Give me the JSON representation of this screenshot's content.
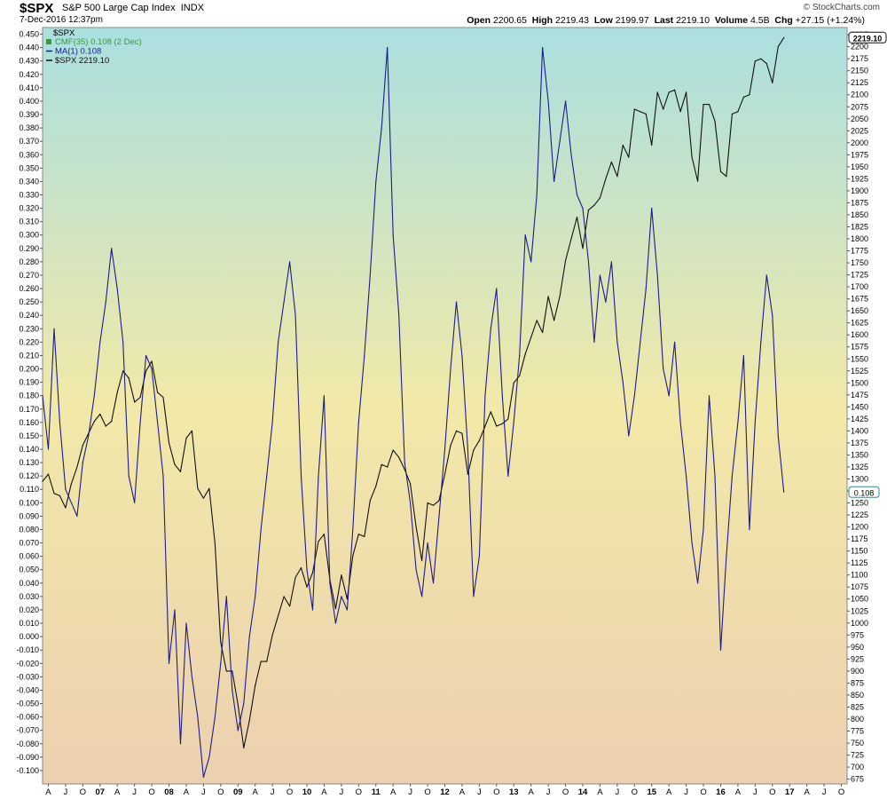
{
  "header": {
    "symbol": "$SPX",
    "name": "S&P 500 Large Cap Index",
    "exchange": "INDX",
    "datetime": "7-Dec-2016 12:37pm",
    "brand": "© StockCharts.com",
    "quote": {
      "open_label": "Open",
      "open": "2200.65",
      "high_label": "High",
      "high": "2219.43",
      "low_label": "Low",
      "low": "2199.97",
      "last_label": "Last",
      "last": "2219.10",
      "volume_label": "Volume",
      "volume": "4.5B",
      "chg_label": "Chg",
      "chg": "+27.15 (+1.24%)"
    }
  },
  "colors": {
    "cmf_line": "#1c1c8a",
    "price_line": "#111111",
    "bg_top": "#aadfe0",
    "bg_mid": "#f2e9a8",
    "bg_bottom": "#ecd0b0",
    "legend_cmf": "#3a9a3a"
  },
  "legend": {
    "ticker": "$SPX",
    "items": [
      {
        "label": "CMF(35) 0.108 (2 Dec)",
        "color": "#3a9a3a",
        "icon": "histogram-icon"
      },
      {
        "label": "MA(1) 0.108",
        "color": "#1c1c8a",
        "icon": "line-icon"
      },
      {
        "label": "$SPX 2219.10",
        "color": "#111111",
        "icon": "line-icon"
      }
    ]
  },
  "chart_data": {
    "type": "line",
    "x_start": "2006-03",
    "x_end": "2017-11",
    "left_axis": {
      "min": -0.11,
      "max": 0.455,
      "ticks": [
        "-0.100",
        "-0.090",
        "-0.080",
        "-0.070",
        "-0.060",
        "-0.050",
        "-0.040",
        "-0.030",
        "-0.020",
        "-0.010",
        "0.000",
        "0.010",
        "0.020",
        "0.030",
        "0.040",
        "0.050",
        "0.060",
        "0.070",
        "0.080",
        "0.090",
        "0.100",
        "0.110",
        "0.120",
        "0.130",
        "0.140",
        "0.150",
        "0.160",
        "0.170",
        "0.180",
        "0.190",
        "0.200",
        "0.210",
        "0.220",
        "0.230",
        "0.240",
        "0.250",
        "0.260",
        "0.270",
        "0.280",
        "0.290",
        "0.300",
        "0.310",
        "0.320",
        "0.330",
        "0.340",
        "0.350",
        "0.360",
        "0.370",
        "0.380",
        "0.390",
        "0.400",
        "0.410",
        "0.420",
        "0.430",
        "0.440",
        "0.450"
      ]
    },
    "right_axis": {
      "min": 665,
      "max": 2240,
      "ticks": [
        "675",
        "700",
        "725",
        "750",
        "775",
        "800",
        "825",
        "850",
        "875",
        "900",
        "925",
        "950",
        "975",
        "1000",
        "1025",
        "1050",
        "1075",
        "1100",
        "1125",
        "1150",
        "1175",
        "1200",
        "1225",
        "1250",
        "1275",
        "1300",
        "1325",
        "1350",
        "1375",
        "1400",
        "1425",
        "1450",
        "1475",
        "1500",
        "1525",
        "1550",
        "1575",
        "1600",
        "1625",
        "1650",
        "1675",
        "1700",
        "1725",
        "1750",
        "1775",
        "1800",
        "1825",
        "1850",
        "1875",
        "1900",
        "1925",
        "1950",
        "1975",
        "2000",
        "2025",
        "2050",
        "2075",
        "2100",
        "2125",
        "2150",
        "2175",
        "2200",
        "2225"
      ]
    },
    "x_ticks": [
      "A",
      "J",
      "O",
      "07",
      "A",
      "J",
      "O",
      "08",
      "A",
      "J",
      "O",
      "09",
      "A",
      "J",
      "O",
      "10",
      "A",
      "J",
      "O",
      "11",
      "A",
      "J",
      "O",
      "12",
      "A",
      "J",
      "O",
      "13",
      "A",
      "J",
      "O",
      "14",
      "A",
      "J",
      "O",
      "15",
      "A",
      "J",
      "O",
      "16",
      "A",
      "J",
      "O",
      "17",
      "A",
      "J",
      "O"
    ],
    "last_badges": {
      "price": "2219.10",
      "cmf": "0.108"
    },
    "series": [
      {
        "name": "CMF(35)",
        "axis": "left",
        "x": [
          "2006-03",
          "2006-04",
          "2006-05",
          "2006-06",
          "2006-07",
          "2006-08",
          "2006-09",
          "2006-10",
          "2006-11",
          "2006-12",
          "2007-01",
          "2007-02",
          "2007-03",
          "2007-04",
          "2007-05",
          "2007-06",
          "2007-07",
          "2007-08",
          "2007-09",
          "2007-10",
          "2007-11",
          "2007-12",
          "2008-01",
          "2008-02",
          "2008-03",
          "2008-04",
          "2008-05",
          "2008-06",
          "2008-07",
          "2008-08",
          "2008-09",
          "2008-10",
          "2008-11",
          "2008-12",
          "2009-01",
          "2009-02",
          "2009-03",
          "2009-04",
          "2009-05",
          "2009-06",
          "2009-07",
          "2009-08",
          "2009-09",
          "2009-10",
          "2009-11",
          "2009-12",
          "2010-01",
          "2010-02",
          "2010-03",
          "2010-04",
          "2010-05",
          "2010-06",
          "2010-07",
          "2010-08",
          "2010-09",
          "2010-10",
          "2010-11",
          "2010-12",
          "2011-01",
          "2011-02",
          "2011-03",
          "2011-04",
          "2011-05",
          "2011-06",
          "2011-07",
          "2011-08",
          "2011-09",
          "2011-10",
          "2011-11",
          "2011-12",
          "2012-01",
          "2012-02",
          "2012-03",
          "2012-04",
          "2012-05",
          "2012-06",
          "2012-07",
          "2012-08",
          "2012-09",
          "2012-10",
          "2012-11",
          "2012-12",
          "2013-01",
          "2013-02",
          "2013-03",
          "2013-04",
          "2013-05",
          "2013-06",
          "2013-07",
          "2013-08",
          "2013-09",
          "2013-10",
          "2013-11",
          "2013-12",
          "2014-01",
          "2014-02",
          "2014-03",
          "2014-04",
          "2014-05",
          "2014-06",
          "2014-07",
          "2014-08",
          "2014-09",
          "2014-10",
          "2014-11",
          "2014-12",
          "2015-01",
          "2015-02",
          "2015-03",
          "2015-04",
          "2015-05",
          "2015-06",
          "2015-07",
          "2015-08",
          "2015-09",
          "2015-10",
          "2015-11",
          "2015-12",
          "2016-01",
          "2016-02",
          "2016-03",
          "2016-04",
          "2016-05",
          "2016-06",
          "2016-07",
          "2016-08",
          "2016-09",
          "2016-10",
          "2016-11",
          "2016-12"
        ],
        "values": [
          0.18,
          0.14,
          0.23,
          0.16,
          0.11,
          0.1,
          0.09,
          0.13,
          0.15,
          0.18,
          0.22,
          0.25,
          0.29,
          0.26,
          0.22,
          0.12,
          0.1,
          0.16,
          0.21,
          0.2,
          0.16,
          0.12,
          -0.02,
          0.02,
          -0.08,
          0.01,
          -0.03,
          -0.06,
          -0.105,
          -0.09,
          -0.06,
          -0.02,
          0.03,
          -0.04,
          -0.07,
          -0.05,
          0.0,
          0.03,
          0.08,
          0.12,
          0.16,
          0.22,
          0.25,
          0.28,
          0.24,
          0.12,
          0.05,
          0.02,
          0.12,
          0.18,
          0.04,
          0.01,
          0.03,
          0.02,
          0.08,
          0.16,
          0.21,
          0.27,
          0.34,
          0.38,
          0.44,
          0.3,
          0.24,
          0.13,
          0.1,
          0.05,
          0.03,
          0.07,
          0.04,
          0.09,
          0.14,
          0.2,
          0.25,
          0.21,
          0.14,
          0.03,
          0.06,
          0.18,
          0.23,
          0.26,
          0.18,
          0.12,
          0.16,
          0.21,
          0.3,
          0.28,
          0.33,
          0.44,
          0.4,
          0.34,
          0.37,
          0.4,
          0.36,
          0.33,
          0.32,
          0.28,
          0.22,
          0.27,
          0.25,
          0.28,
          0.22,
          0.19,
          0.15,
          0.18,
          0.22,
          0.26,
          0.32,
          0.27,
          0.2,
          0.18,
          0.22,
          0.16,
          0.12,
          0.07,
          0.04,
          0.08,
          0.18,
          0.12,
          -0.01,
          0.06,
          0.12,
          0.16,
          0.21,
          0.08,
          0.16,
          0.22,
          0.27,
          0.24,
          0.15,
          0.108
        ]
      },
      {
        "name": "$SPX",
        "axis": "right",
        "x": [
          "2006-03",
          "2006-04",
          "2006-05",
          "2006-06",
          "2006-07",
          "2006-08",
          "2006-09",
          "2006-10",
          "2006-11",
          "2006-12",
          "2007-01",
          "2007-02",
          "2007-03",
          "2007-04",
          "2007-05",
          "2007-06",
          "2007-07",
          "2007-08",
          "2007-09",
          "2007-10",
          "2007-11",
          "2007-12",
          "2008-01",
          "2008-02",
          "2008-03",
          "2008-04",
          "2008-05",
          "2008-06",
          "2008-07",
          "2008-08",
          "2008-09",
          "2008-10",
          "2008-11",
          "2008-12",
          "2009-01",
          "2009-02",
          "2009-03",
          "2009-04",
          "2009-05",
          "2009-06",
          "2009-07",
          "2009-08",
          "2009-09",
          "2009-10",
          "2009-11",
          "2009-12",
          "2010-01",
          "2010-02",
          "2010-03",
          "2010-04",
          "2010-05",
          "2010-06",
          "2010-07",
          "2010-08",
          "2010-09",
          "2010-10",
          "2010-11",
          "2010-12",
          "2011-01",
          "2011-02",
          "2011-03",
          "2011-04",
          "2011-05",
          "2011-06",
          "2011-07",
          "2011-08",
          "2011-09",
          "2011-10",
          "2011-11",
          "2011-12",
          "2012-01",
          "2012-02",
          "2012-03",
          "2012-04",
          "2012-05",
          "2012-06",
          "2012-07",
          "2012-08",
          "2012-09",
          "2012-10",
          "2012-11",
          "2012-12",
          "2013-01",
          "2013-02",
          "2013-03",
          "2013-04",
          "2013-05",
          "2013-06",
          "2013-07",
          "2013-08",
          "2013-09",
          "2013-10",
          "2013-11",
          "2013-12",
          "2014-01",
          "2014-02",
          "2014-03",
          "2014-04",
          "2014-05",
          "2014-06",
          "2014-07",
          "2014-08",
          "2014-09",
          "2014-10",
          "2014-11",
          "2014-12",
          "2015-01",
          "2015-02",
          "2015-03",
          "2015-04",
          "2015-05",
          "2015-06",
          "2015-07",
          "2015-08",
          "2015-09",
          "2015-10",
          "2015-11",
          "2015-12",
          "2016-01",
          "2016-02",
          "2016-03",
          "2016-04",
          "2016-05",
          "2016-06",
          "2016-07",
          "2016-08",
          "2016-09",
          "2016-10",
          "2016-11",
          "2016-12"
        ],
        "values": [
          1295,
          1310,
          1270,
          1265,
          1240,
          1290,
          1325,
          1370,
          1395,
          1420,
          1435,
          1410,
          1420,
          1480,
          1525,
          1510,
          1460,
          1470,
          1525,
          1545,
          1480,
          1470,
          1375,
          1330,
          1315,
          1385,
          1400,
          1280,
          1260,
          1280,
          1165,
          960,
          900,
          900,
          830,
          740,
          797,
          870,
          920,
          920,
          975,
          1015,
          1055,
          1035,
          1095,
          1115,
          1075,
          1105,
          1170,
          1185,
          1090,
          1030,
          1100,
          1050,
          1140,
          1185,
          1180,
          1255,
          1285,
          1330,
          1325,
          1360,
          1345,
          1320,
          1290,
          1200,
          1130,
          1250,
          1245,
          1255,
          1310,
          1370,
          1400,
          1395,
          1310,
          1360,
          1380,
          1410,
          1440,
          1410,
          1415,
          1425,
          1500,
          1515,
          1560,
          1595,
          1630,
          1605,
          1680,
          1630,
          1680,
          1755,
          1800,
          1845,
          1780,
          1860,
          1870,
          1885,
          1925,
          1960,
          1930,
          1995,
          1970,
          2070,
          2065,
          2060,
          1995,
          2105,
          2070,
          2105,
          2110,
          2065,
          2105,
          1970,
          1920,
          2080,
          2080,
          2045,
          1940,
          1930,
          2060,
          2065,
          2095,
          2100,
          2170,
          2175,
          2165,
          2125,
          2200,
          2219
        ]
      }
    ]
  }
}
